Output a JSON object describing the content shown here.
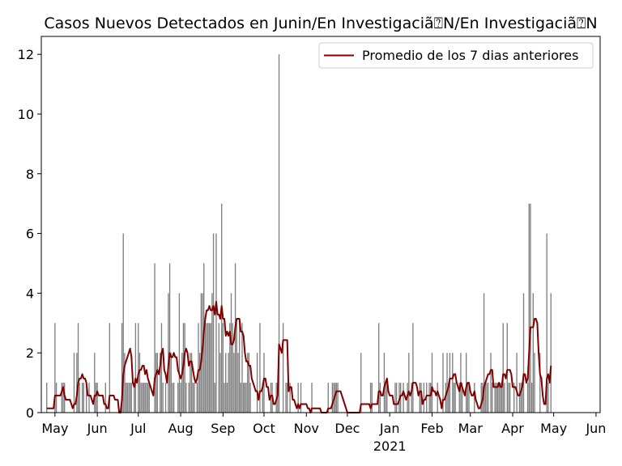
{
  "chart_data": {
    "type": "bar",
    "title": "Casos Nuevos Detectados en Junin/En Investigaciã⍰N/En Investigaciã⍰N",
    "xlabel": "",
    "ylabel": "",
    "ylim": [
      0,
      12.6
    ],
    "yticks": [
      0,
      2,
      4,
      6,
      8,
      10,
      12
    ],
    "x_range": [
      "2020-04-21",
      "2021-06-04"
    ],
    "xticks": [
      {
        "date": "2020-05-01",
        "label": "May"
      },
      {
        "date": "2020-06-01",
        "label": "Jun"
      },
      {
        "date": "2020-07-01",
        "label": "Jul"
      },
      {
        "date": "2020-08-01",
        "label": "Aug"
      },
      {
        "date": "2020-09-01",
        "label": "Sep"
      },
      {
        "date": "2020-10-01",
        "label": "Oct"
      },
      {
        "date": "2020-11-01",
        "label": "Nov"
      },
      {
        "date": "2020-12-01",
        "label": "Dec"
      },
      {
        "date": "2021-01-01",
        "label": "Jan",
        "sublabel": "2021"
      },
      {
        "date": "2021-02-01",
        "label": "Feb"
      },
      {
        "date": "2021-03-01",
        "label": "Mar"
      },
      {
        "date": "2021-04-01",
        "label": "Apr"
      },
      {
        "date": "2021-05-01",
        "label": "May"
      },
      {
        "date": "2021-06-01",
        "label": "Jun"
      }
    ],
    "grid": false,
    "legend_position": "top-right",
    "bar_color": "#808080",
    "line_color": "#800000",
    "start_date": "2020-04-25",
    "values": [
      1,
      0,
      0,
      0,
      0,
      0,
      3,
      1,
      0,
      0,
      0,
      1,
      1,
      1,
      0,
      0,
      0,
      0,
      0,
      0,
      2,
      0,
      2,
      3,
      1,
      0,
      1,
      1,
      0,
      1,
      0,
      1,
      0,
      0,
      0,
      2,
      1,
      1,
      0,
      0,
      0,
      0,
      0,
      1,
      0,
      0,
      3,
      0,
      0,
      0,
      0,
      0,
      0,
      0,
      0,
      3,
      6,
      2,
      1,
      1,
      1,
      1,
      1,
      0,
      1,
      3,
      0,
      3,
      2,
      1,
      1,
      1,
      1,
      1,
      1,
      1,
      0,
      0,
      0,
      5,
      2,
      2,
      0,
      2,
      3,
      1,
      0,
      1,
      0,
      4,
      5,
      2,
      1,
      1,
      0,
      0,
      1,
      4,
      1,
      2,
      3,
      3,
      1,
      0,
      1,
      2,
      2,
      1,
      1,
      0,
      1,
      3,
      2,
      4,
      4,
      5,
      3,
      3,
      3,
      3,
      3,
      4,
      6,
      1,
      6,
      0,
      3,
      2,
      7,
      3,
      1,
      2,
      1,
      2,
      3,
      4,
      3,
      2,
      5,
      3,
      2,
      3,
      1,
      3,
      1,
      1,
      1,
      2,
      2,
      1,
      0,
      0,
      0,
      0,
      2,
      0,
      3,
      0,
      1,
      2,
      0,
      0,
      0,
      0,
      1,
      1,
      0,
      0,
      1,
      1,
      12,
      0,
      0,
      3,
      0,
      1,
      1,
      0,
      1,
      0,
      0,
      0,
      0,
      0,
      1,
      0,
      1,
      0,
      0,
      0,
      0,
      0,
      0,
      0,
      1,
      0,
      0,
      0,
      0,
      0,
      0,
      0,
      0,
      0,
      0,
      0,
      1,
      0,
      0,
      1,
      1,
      1,
      1,
      1,
      0,
      0,
      0,
      0,
      0,
      0,
      0,
      0,
      0,
      0,
      0,
      0,
      0,
      0,
      0,
      0,
      2,
      0,
      0,
      0,
      0,
      0,
      0,
      1,
      1,
      0,
      0,
      0,
      0,
      3,
      1,
      0,
      0,
      2,
      1,
      1,
      0,
      0,
      0,
      0,
      0,
      1,
      1,
      0,
      1,
      1,
      0,
      1,
      0,
      0,
      1,
      2,
      0,
      1,
      3,
      0,
      0,
      0,
      0,
      1,
      1,
      0,
      1,
      0,
      1,
      0,
      1,
      1,
      2,
      0,
      0,
      0,
      1,
      0,
      0,
      0,
      2,
      0,
      1,
      2,
      1,
      2,
      0,
      2,
      1,
      1,
      0,
      0,
      1,
      2,
      1,
      0,
      0,
      2,
      1,
      1,
      0,
      0,
      0,
      1,
      0,
      0,
      0,
      0,
      1,
      1,
      4,
      1,
      1,
      1,
      0,
      2,
      1,
      0,
      1,
      1,
      1,
      1,
      1,
      1,
      3,
      1,
      0,
      3,
      1,
      1,
      0,
      0,
      1,
      0,
      2,
      0,
      1,
      1,
      1,
      4,
      0,
      0,
      1,
      7,
      7,
      1,
      4,
      2,
      0,
      0,
      0,
      2,
      0,
      0,
      0,
      0,
      6,
      1,
      0,
      4
    ],
    "series": [
      {
        "name": "Promedio de los 7 dias anteriores",
        "type": "line",
        "window": 7
      }
    ]
  }
}
